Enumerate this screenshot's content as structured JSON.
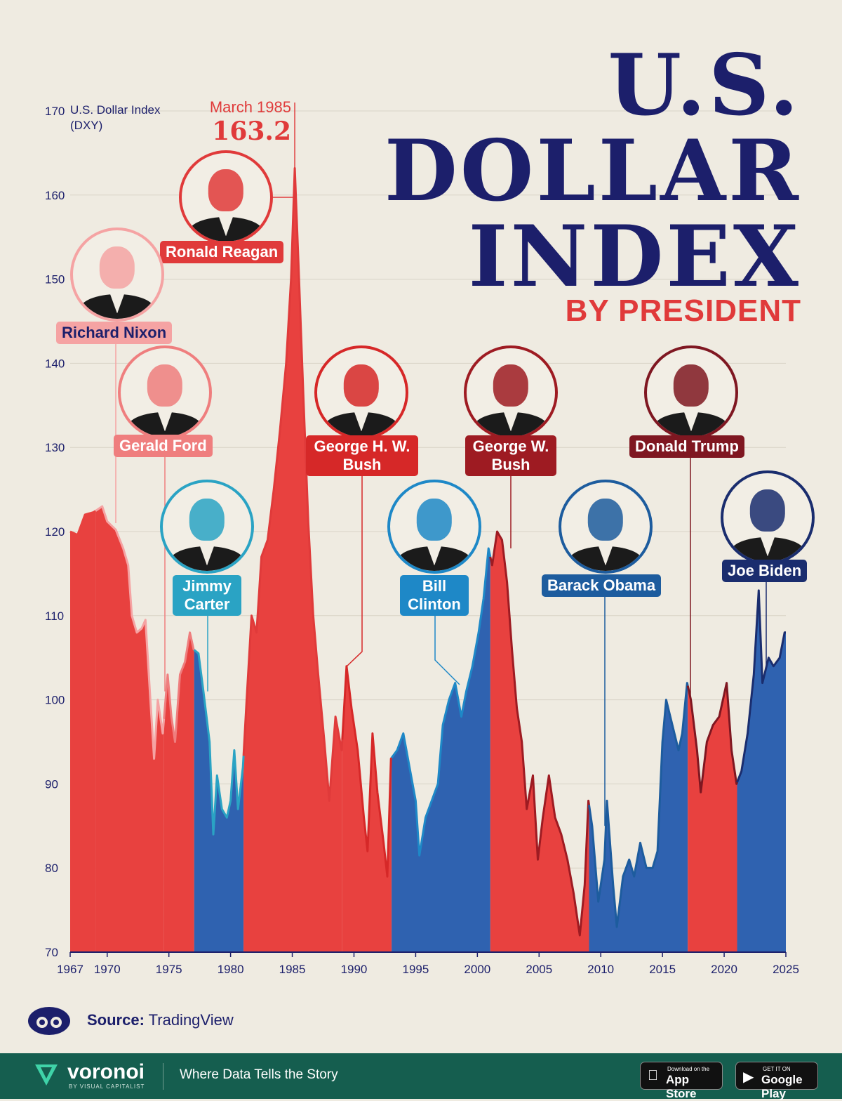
{
  "title": {
    "line1": "U.S.",
    "line2": "DOLLAR",
    "line3": "INDEX",
    "subtitle": "BY PRESIDENT"
  },
  "chart_data": {
    "type": "area",
    "title": "U.S. DOLLAR INDEX BY PRESIDENT",
    "ylabel": "U.S. Dollar Index (DXY)",
    "xlabel": "",
    "xlim": [
      1967,
      2025
    ],
    "ylim": [
      70,
      170
    ],
    "x_ticks": [
      "1967",
      "1970",
      "1975",
      "1980",
      "1985",
      "1990",
      "1995",
      "2000",
      "2005",
      "2010",
      "2015",
      "2020",
      "2025"
    ],
    "y_ticks": [
      "70",
      "80",
      "90",
      "100",
      "110",
      "120",
      "130",
      "140",
      "150",
      "160",
      "170"
    ],
    "grid": true,
    "annotation": {
      "month": "March 1985",
      "value": "163.2",
      "x": 1985.2,
      "y": 163.2
    },
    "points": [
      [
        1967.0,
        120.0
      ],
      [
        1967.6,
        119.6
      ],
      [
        1968.2,
        122.0
      ],
      [
        1968.9,
        122.3
      ],
      [
        1969.6,
        123.0
      ],
      [
        1970.0,
        121.2
      ],
      [
        1970.7,
        120.2
      ],
      [
        1971.3,
        118.0
      ],
      [
        1971.7,
        116.0
      ],
      [
        1972.0,
        110.0
      ],
      [
        1972.4,
        108.0
      ],
      [
        1972.8,
        108.5
      ],
      [
        1973.1,
        109.5
      ],
      [
        1973.5,
        100.0
      ],
      [
        1973.8,
        93.0
      ],
      [
        1974.1,
        100.0
      ],
      [
        1974.5,
        96.0
      ],
      [
        1974.9,
        103.0
      ],
      [
        1975.2,
        98.0
      ],
      [
        1975.5,
        95.0
      ],
      [
        1975.9,
        103.0
      ],
      [
        1976.3,
        104.5
      ],
      [
        1976.7,
        108.0
      ],
      [
        1977.0,
        106.0
      ],
      [
        1977.4,
        105.5
      ],
      [
        1977.8,
        101.0
      ],
      [
        1978.3,
        95.0
      ],
      [
        1978.6,
        84.0
      ],
      [
        1978.9,
        91.0
      ],
      [
        1979.3,
        87.0
      ],
      [
        1979.7,
        86.0
      ],
      [
        1980.0,
        88.0
      ],
      [
        1980.3,
        94.0
      ],
      [
        1980.6,
        87.0
      ],
      [
        1981.0,
        92.0
      ],
      [
        1981.3,
        100.0
      ],
      [
        1981.7,
        110.0
      ],
      [
        1982.1,
        108.0
      ],
      [
        1982.5,
        117.0
      ],
      [
        1983.0,
        119.0
      ],
      [
        1983.5,
        125.0
      ],
      [
        1984.0,
        132.0
      ],
      [
        1984.5,
        140.0
      ],
      [
        1984.9,
        150.0
      ],
      [
        1985.2,
        163.2
      ],
      [
        1985.5,
        152.0
      ],
      [
        1985.9,
        136.0
      ],
      [
        1986.3,
        121.0
      ],
      [
        1986.7,
        110.0
      ],
      [
        1987.1,
        103.0
      ],
      [
        1987.6,
        95.0
      ],
      [
        1988.0,
        88.0
      ],
      [
        1988.5,
        98.0
      ],
      [
        1989.0,
        94.0
      ],
      [
        1989.4,
        104.0
      ],
      [
        1989.8,
        99.0
      ],
      [
        1990.3,
        94.0
      ],
      [
        1990.8,
        86.0
      ],
      [
        1991.1,
        82.0
      ],
      [
        1991.5,
        96.0
      ],
      [
        1991.9,
        89.0
      ],
      [
        1992.4,
        83.0
      ],
      [
        1992.7,
        79.0
      ],
      [
        1993.0,
        93.0
      ],
      [
        1993.5,
        94.0
      ],
      [
        1994.0,
        96.0
      ],
      [
        1994.5,
        92.0
      ],
      [
        1995.0,
        88.0
      ],
      [
        1995.3,
        81.5
      ],
      [
        1995.8,
        86.0
      ],
      [
        1996.3,
        88.0
      ],
      [
        1996.8,
        90.0
      ],
      [
        1997.2,
        97.0
      ],
      [
        1997.7,
        100.0
      ],
      [
        1998.2,
        102.0
      ],
      [
        1998.7,
        98.0
      ],
      [
        1999.1,
        101.0
      ],
      [
        1999.6,
        104.0
      ],
      [
        2000.1,
        108.0
      ],
      [
        2000.5,
        112.0
      ],
      [
        2000.9,
        118.0
      ],
      [
        2001.2,
        116.0
      ],
      [
        2001.6,
        120.0
      ],
      [
        2002.0,
        119.0
      ],
      [
        2002.4,
        114.0
      ],
      [
        2002.8,
        106.0
      ],
      [
        2003.2,
        99.0
      ],
      [
        2003.6,
        95.0
      ],
      [
        2004.0,
        87.0
      ],
      [
        2004.5,
        91.0
      ],
      [
        2004.9,
        81.0
      ],
      [
        2005.3,
        86.0
      ],
      [
        2005.8,
        91.0
      ],
      [
        2006.3,
        86.0
      ],
      [
        2006.8,
        84.0
      ],
      [
        2007.3,
        81.0
      ],
      [
        2007.8,
        77.0
      ],
      [
        2008.3,
        72.0
      ],
      [
        2008.7,
        78.0
      ],
      [
        2009.0,
        88.0
      ],
      [
        2009.3,
        85.0
      ],
      [
        2009.8,
        76.0
      ],
      [
        2010.3,
        81.0
      ],
      [
        2010.5,
        88.0
      ],
      [
        2011.0,
        78.0
      ],
      [
        2011.3,
        73.0
      ],
      [
        2011.8,
        79.0
      ],
      [
        2012.3,
        81.0
      ],
      [
        2012.7,
        79.0
      ],
      [
        2013.2,
        83.0
      ],
      [
        2013.7,
        80.0
      ],
      [
        2014.2,
        80.0
      ],
      [
        2014.6,
        82.0
      ],
      [
        2015.0,
        95.0
      ],
      [
        2015.3,
        100.0
      ],
      [
        2015.8,
        97.0
      ],
      [
        2016.3,
        94.0
      ],
      [
        2016.6,
        96.0
      ],
      [
        2017.0,
        102.0
      ],
      [
        2017.3,
        100.0
      ],
      [
        2017.8,
        94.0
      ],
      [
        2018.1,
        89.0
      ],
      [
        2018.6,
        95.0
      ],
      [
        2019.1,
        97.0
      ],
      [
        2019.6,
        98.0
      ],
      [
        2020.2,
        102.0
      ],
      [
        2020.6,
        94.0
      ],
      [
        2021.0,
        90.0
      ],
      [
        2021.4,
        91.5
      ],
      [
        2021.9,
        96.0
      ],
      [
        2022.4,
        103.0
      ],
      [
        2022.8,
        113.0
      ],
      [
        2023.1,
        102.0
      ],
      [
        2023.6,
        105.0
      ],
      [
        2024.0,
        104.0
      ],
      [
        2024.5,
        105.0
      ],
      [
        2024.9,
        108.0
      ],
      [
        2025.0,
        108.0
      ]
    ],
    "terms": [
      {
        "name": "Richard Nixon",
        "party": "R",
        "start": 1969.05,
        "end": 1974.6
      },
      {
        "name": "Gerald Ford",
        "party": "R",
        "start": 1974.6,
        "end": 1977.05
      },
      {
        "name": "Jimmy Carter",
        "party": "D",
        "start": 1977.05,
        "end": 1981.05
      },
      {
        "name": "Ronald Reagan",
        "party": "R",
        "start": 1981.05,
        "end": 1989.05
      },
      {
        "name": "George H. W. Bush",
        "party": "R",
        "start": 1989.05,
        "end": 1993.05
      },
      {
        "name": "Bill Clinton",
        "party": "D",
        "start": 1993.05,
        "end": 2001.05
      },
      {
        "name": "George W. Bush",
        "party": "R",
        "start": 2001.05,
        "end": 2009.05
      },
      {
        "name": "Barack Obama",
        "party": "D",
        "start": 2009.05,
        "end": 2017.05
      },
      {
        "name": "Donald Trump",
        "party": "R",
        "start": 2017.05,
        "end": 2021.05
      },
      {
        "name": "Joe Biden",
        "party": "D",
        "start": 2021.05,
        "end": 2025.0
      }
    ]
  },
  "presidents": [
    {
      "name": "Ronald Reagan",
      "color": "#e03a3a"
    },
    {
      "name": "Richard Nixon",
      "color": "#f5a3a3"
    },
    {
      "name": "Gerald Ford",
      "color": "#ef7e7e"
    },
    {
      "name": "Jimmy Carter",
      "color": "#2aa3c4"
    },
    {
      "name": "George H. W. Bush",
      "color": "#d62828"
    },
    {
      "name": "Bill Clinton",
      "color": "#1e88c7"
    },
    {
      "name": "George W. Bush",
      "color": "#9e1b22"
    },
    {
      "name": "Barack Obama",
      "color": "#1d5c9e"
    },
    {
      "name": "Donald Trump",
      "color": "#7f1721"
    },
    {
      "name": "Joe Biden",
      "color": "#1a2d6e"
    }
  ],
  "colors": {
    "republican_fill": "#e8413f",
    "democrat_fill": "#2f62b0",
    "navy": "#1c1f6b",
    "background": "#efebe1"
  },
  "source": {
    "label": "Source:",
    "value": "TradingView",
    "icon": "visual-capitalist-icon"
  },
  "footer": {
    "brand": "voronoi",
    "brand_sub": "BY VISUAL CAPITALIST",
    "tagline": "Where Data Tells the Story",
    "app_store_small": "Download on the",
    "app_store": "App Store",
    "google_play_small": "GET IT ON",
    "google_play": "Google Play"
  }
}
